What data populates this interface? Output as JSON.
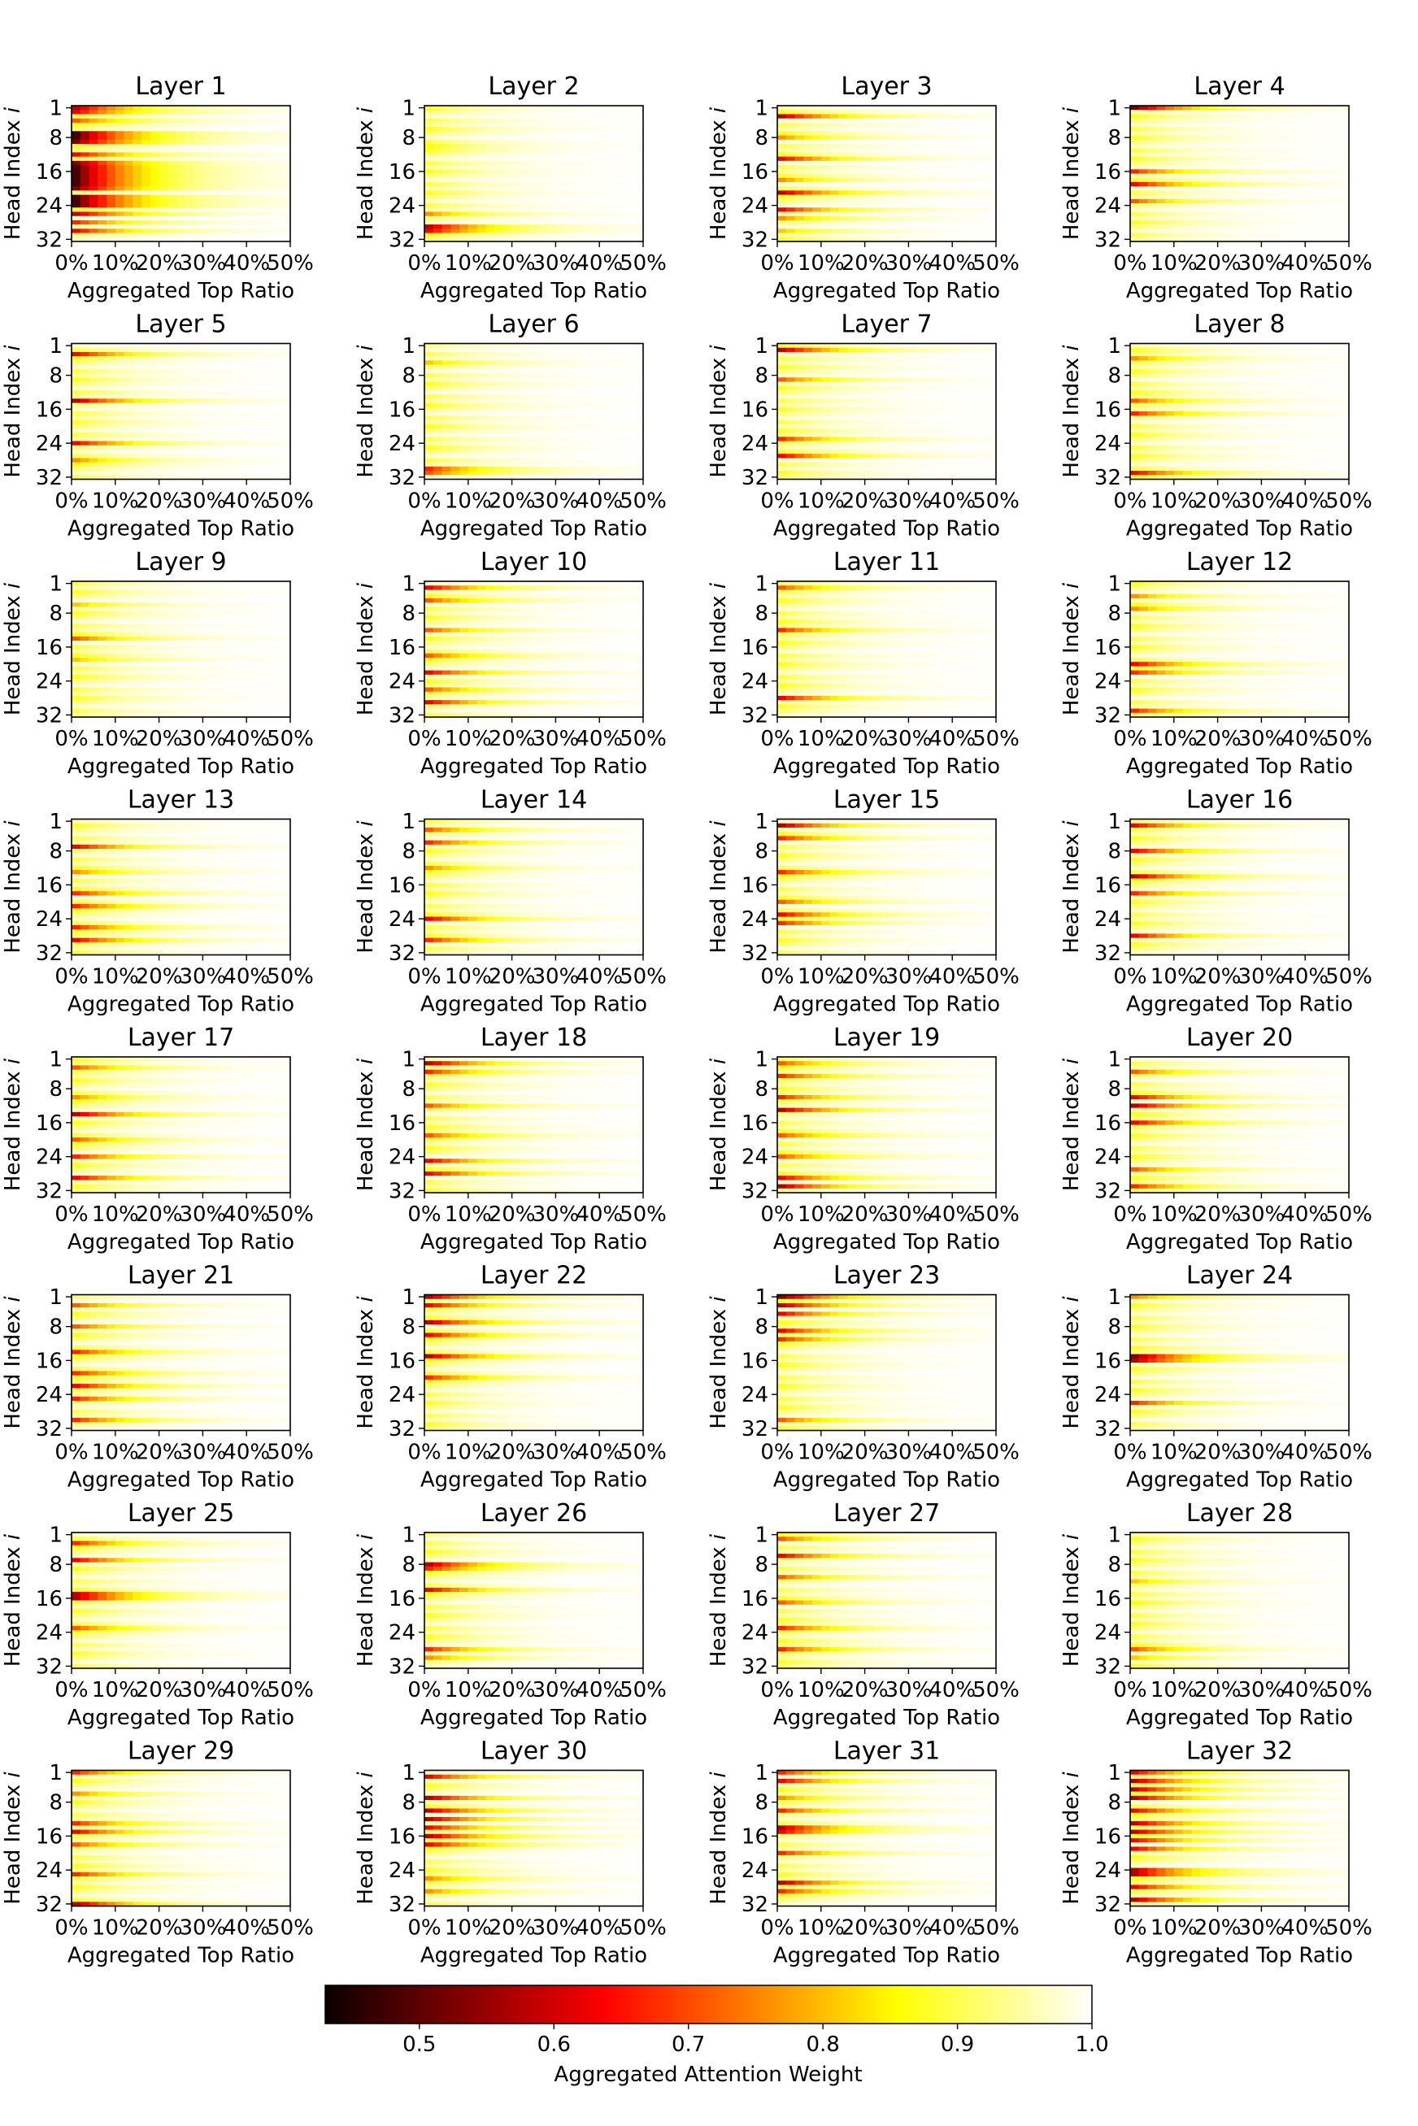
{
  "chart_data": {
    "type": "heatmap",
    "colormap": "hot",
    "subplot_titles": [
      "Layer 1",
      "Layer 2",
      "Layer 3",
      "Layer 4",
      "Layer 5",
      "Layer 6",
      "Layer 7",
      "Layer 8",
      "Layer 9",
      "Layer 10",
      "Layer 11",
      "Layer 12",
      "Layer 13",
      "Layer 14",
      "Layer 15",
      "Layer 16",
      "Layer 17",
      "Layer 18",
      "Layer 19",
      "Layer 20",
      "Layer 21",
      "Layer 22",
      "Layer 23",
      "Layer 24",
      "Layer 25",
      "Layer 26",
      "Layer 27",
      "Layer 28",
      "Layer 29",
      "Layer 30",
      "Layer 31",
      "Layer 32"
    ],
    "xlabel": "Aggregated Top Ratio",
    "ylabel": "Head Index i",
    "ylabel_main": "Head Index ",
    "ylabel_var": "i",
    "x_tick_labels": [
      "0%",
      "10%",
      "20%",
      "30%",
      "40%",
      "50%"
    ],
    "x_range": [
      0,
      50
    ],
    "y_tick_labels": [
      "1",
      "8",
      "16",
      "24",
      "32"
    ],
    "y_tick_values": [
      1,
      8,
      16,
      24,
      32
    ],
    "num_heads": 32,
    "colorbar": {
      "label": "Aggregated Attention Weight",
      "range": [
        0.43,
        1.0
      ],
      "tick_labels": [
        "0.5",
        "0.6",
        "0.7",
        "0.8",
        "0.9",
        "1.0"
      ],
      "tick_values": [
        0.5,
        0.6,
        0.7,
        0.8,
        0.9,
        1.0
      ]
    },
    "layer_strong_heads": [
      [
        [
          1,
          0.55
        ],
        [
          2,
          0.6
        ],
        [
          4,
          0.7
        ],
        [
          7,
          0.45
        ],
        [
          8,
          0.45
        ],
        [
          9,
          0.5
        ],
        [
          12,
          0.6
        ],
        [
          14,
          0.5
        ],
        [
          15,
          0.45
        ],
        [
          16,
          0.45
        ],
        [
          17,
          0.45
        ],
        [
          18,
          0.45
        ],
        [
          19,
          0.45
        ],
        [
          20,
          0.5
        ],
        [
          22,
          0.45
        ],
        [
          23,
          0.45
        ],
        [
          24,
          0.45
        ],
        [
          26,
          0.55
        ],
        [
          28,
          0.65
        ],
        [
          30,
          0.6
        ]
      ],
      [
        [
          29,
          0.55
        ],
        [
          30,
          0.6
        ],
        [
          26,
          0.75
        ],
        [
          10,
          0.85
        ]
      ],
      [
        [
          3,
          0.55
        ],
        [
          8,
          0.75
        ],
        [
          13,
          0.6
        ],
        [
          18,
          0.75
        ],
        [
          21,
          0.55
        ],
        [
          25,
          0.6
        ],
        [
          27,
          0.75
        ],
        [
          30,
          0.8
        ]
      ],
      [
        [
          1,
          0.5
        ],
        [
          16,
          0.65
        ],
        [
          19,
          0.6
        ],
        [
          23,
          0.7
        ]
      ],
      [
        [
          3,
          0.6
        ],
        [
          14,
          0.55
        ],
        [
          24,
          0.6
        ],
        [
          28,
          0.75
        ]
      ],
      [
        [
          5,
          0.8
        ],
        [
          30,
          0.65
        ],
        [
          31,
          0.7
        ]
      ],
      [
        [
          2,
          0.55
        ],
        [
          9,
          0.7
        ],
        [
          23,
          0.65
        ],
        [
          27,
          0.6
        ]
      ],
      [
        [
          4,
          0.75
        ],
        [
          14,
          0.7
        ],
        [
          17,
          0.65
        ],
        [
          31,
          0.6
        ]
      ],
      [
        [
          6,
          0.8
        ],
        [
          14,
          0.7
        ],
        [
          19,
          0.8
        ]
      ],
      [
        [
          2,
          0.6
        ],
        [
          5,
          0.7
        ],
        [
          12,
          0.7
        ],
        [
          18,
          0.7
        ],
        [
          22,
          0.6
        ],
        [
          26,
          0.7
        ],
        [
          29,
          0.6
        ]
      ],
      [
        [
          2,
          0.7
        ],
        [
          12,
          0.65
        ],
        [
          28,
          0.6
        ]
      ],
      [
        [
          4,
          0.75
        ],
        [
          7,
          0.75
        ],
        [
          20,
          0.6
        ],
        [
          22,
          0.65
        ],
        [
          31,
          0.65
        ]
      ],
      [
        [
          7,
          0.6
        ],
        [
          13,
          0.75
        ],
        [
          18,
          0.65
        ],
        [
          21,
          0.65
        ],
        [
          26,
          0.65
        ],
        [
          29,
          0.6
        ]
      ],
      [
        [
          3,
          0.7
        ],
        [
          6,
          0.65
        ],
        [
          12,
          0.75
        ],
        [
          24,
          0.6
        ],
        [
          29,
          0.65
        ]
      ],
      [
        [
          2,
          0.55
        ],
        [
          5,
          0.65
        ],
        [
          13,
          0.65
        ],
        [
          20,
          0.7
        ],
        [
          23,
          0.6
        ],
        [
          25,
          0.65
        ]
      ],
      [
        [
          2,
          0.6
        ],
        [
          8,
          0.6
        ],
        [
          14,
          0.55
        ],
        [
          18,
          0.65
        ],
        [
          28,
          0.6
        ]
      ],
      [
        [
          3,
          0.7
        ],
        [
          10,
          0.75
        ],
        [
          14,
          0.55
        ],
        [
          20,
          0.7
        ],
        [
          24,
          0.65
        ],
        [
          29,
          0.6
        ]
      ],
      [
        [
          2,
          0.55
        ],
        [
          4,
          0.65
        ],
        [
          12,
          0.7
        ],
        [
          19,
          0.7
        ],
        [
          25,
          0.6
        ],
        [
          28,
          0.6
        ]
      ],
      [
        [
          2,
          0.7
        ],
        [
          5,
          0.65
        ],
        [
          10,
          0.65
        ],
        [
          13,
          0.55
        ],
        [
          19,
          0.7
        ],
        [
          24,
          0.7
        ],
        [
          29,
          0.6
        ],
        [
          31,
          0.55
        ]
      ],
      [
        [
          4,
          0.7
        ],
        [
          10,
          0.6
        ],
        [
          12,
          0.55
        ],
        [
          16,
          0.6
        ],
        [
          27,
          0.7
        ],
        [
          31,
          0.65
        ]
      ],
      [
        [
          3,
          0.7
        ],
        [
          8,
          0.7
        ],
        [
          14,
          0.65
        ],
        [
          19,
          0.65
        ],
        [
          22,
          0.6
        ],
        [
          25,
          0.65
        ],
        [
          30,
          0.65
        ]
      ],
      [
        [
          1,
          0.55
        ],
        [
          3,
          0.6
        ],
        [
          7,
          0.55
        ],
        [
          10,
          0.6
        ],
        [
          15,
          0.55
        ],
        [
          20,
          0.65
        ]
      ],
      [
        [
          1,
          0.5
        ],
        [
          3,
          0.55
        ],
        [
          5,
          0.6
        ],
        [
          9,
          0.6
        ],
        [
          11,
          0.65
        ],
        [
          30,
          0.7
        ]
      ],
      [
        [
          1,
          0.75
        ],
        [
          15,
          0.5
        ],
        [
          16,
          0.55
        ],
        [
          26,
          0.65
        ]
      ],
      [
        [
          3,
          0.65
        ],
        [
          7,
          0.6
        ],
        [
          15,
          0.55
        ],
        [
          16,
          0.55
        ],
        [
          23,
          0.7
        ]
      ],
      [
        [
          8,
          0.55
        ],
        [
          9,
          0.65
        ],
        [
          14,
          0.6
        ],
        [
          28,
          0.65
        ],
        [
          30,
          0.75
        ]
      ],
      [
        [
          2,
          0.7
        ],
        [
          6,
          0.6
        ],
        [
          11,
          0.7
        ],
        [
          17,
          0.7
        ],
        [
          23,
          0.65
        ],
        [
          28,
          0.65
        ]
      ],
      [
        [
          12,
          0.8
        ],
        [
          17,
          0.85
        ],
        [
          28,
          0.7
        ],
        [
          30,
          0.8
        ]
      ],
      [
        [
          1,
          0.65
        ],
        [
          6,
          0.75
        ],
        [
          13,
          0.65
        ],
        [
          15,
          0.6
        ],
        [
          18,
          0.7
        ],
        [
          25,
          0.65
        ],
        [
          32,
          0.55
        ]
      ],
      [
        [
          2,
          0.6
        ],
        [
          7,
          0.55
        ],
        [
          10,
          0.55
        ],
        [
          12,
          0.55
        ],
        [
          14,
          0.6
        ],
        [
          16,
          0.55
        ],
        [
          18,
          0.6
        ],
        [
          26,
          0.75
        ],
        [
          29,
          0.75
        ]
      ],
      [
        [
          1,
          0.65
        ],
        [
          3,
          0.6
        ],
        [
          7,
          0.75
        ],
        [
          10,
          0.65
        ],
        [
          14,
          0.55
        ],
        [
          15,
          0.6
        ],
        [
          20,
          0.65
        ],
        [
          27,
          0.55
        ],
        [
          29,
          0.65
        ]
      ],
      [
        [
          1,
          0.6
        ],
        [
          3,
          0.55
        ],
        [
          5,
          0.55
        ],
        [
          7,
          0.55
        ],
        [
          10,
          0.6
        ],
        [
          13,
          0.55
        ],
        [
          15,
          0.55
        ],
        [
          17,
          0.6
        ],
        [
          19,
          0.6
        ],
        [
          24,
          0.55
        ],
        [
          25,
          0.55
        ],
        [
          28,
          0.6
        ],
        [
          31,
          0.55
        ]
      ]
    ]
  }
}
